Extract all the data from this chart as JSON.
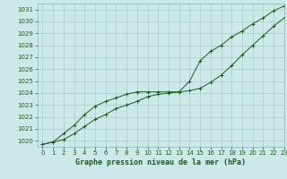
{
  "xlabel": "Graphe pression niveau de la mer (hPa)",
  "bg_color": "#cce8e8",
  "grid_color": "#aacccc",
  "line_color": "#1a5c1a",
  "xlim": [
    -0.5,
    23
  ],
  "ylim": [
    1019.5,
    1031.5
  ],
  "yticks": [
    1020,
    1021,
    1022,
    1023,
    1024,
    1025,
    1026,
    1027,
    1028,
    1029,
    1030,
    1031
  ],
  "xticks": [
    0,
    1,
    2,
    3,
    4,
    5,
    6,
    7,
    8,
    9,
    10,
    11,
    12,
    13,
    14,
    15,
    16,
    17,
    18,
    19,
    20,
    21,
    22,
    23
  ],
  "line1_x": [
    0,
    1,
    2,
    3,
    4,
    5,
    6,
    7,
    8,
    9,
    10,
    11,
    12,
    13,
    14,
    15,
    16,
    17,
    18,
    19,
    20,
    21,
    22,
    23
  ],
  "line1_y": [
    1019.7,
    1019.9,
    1020.1,
    1020.6,
    1021.2,
    1021.8,
    1022.2,
    1022.7,
    1023.0,
    1023.3,
    1023.7,
    1023.9,
    1024.0,
    1024.1,
    1024.2,
    1024.4,
    1024.9,
    1025.5,
    1026.3,
    1027.2,
    1028.0,
    1028.8,
    1029.6,
    1030.3
  ],
  "line2_x": [
    0,
    1,
    2,
    3,
    4,
    5,
    6,
    7,
    8,
    9,
    10,
    11,
    12,
    13,
    14,
    15,
    16,
    17,
    18,
    19,
    20,
    21,
    22,
    23
  ],
  "line2_y": [
    1019.7,
    1019.9,
    1020.6,
    1021.3,
    1022.2,
    1022.9,
    1023.3,
    1023.6,
    1023.9,
    1024.1,
    1024.1,
    1024.1,
    1024.1,
    1024.1,
    1025.0,
    1026.7,
    1027.5,
    1028.0,
    1028.7,
    1029.2,
    1029.8,
    1030.3,
    1030.9,
    1031.3
  ],
  "tick_fontsize": 5,
  "xlabel_fontsize": 6,
  "tick_color": "#1a5c1a",
  "spine_color": "#8ab0b0"
}
